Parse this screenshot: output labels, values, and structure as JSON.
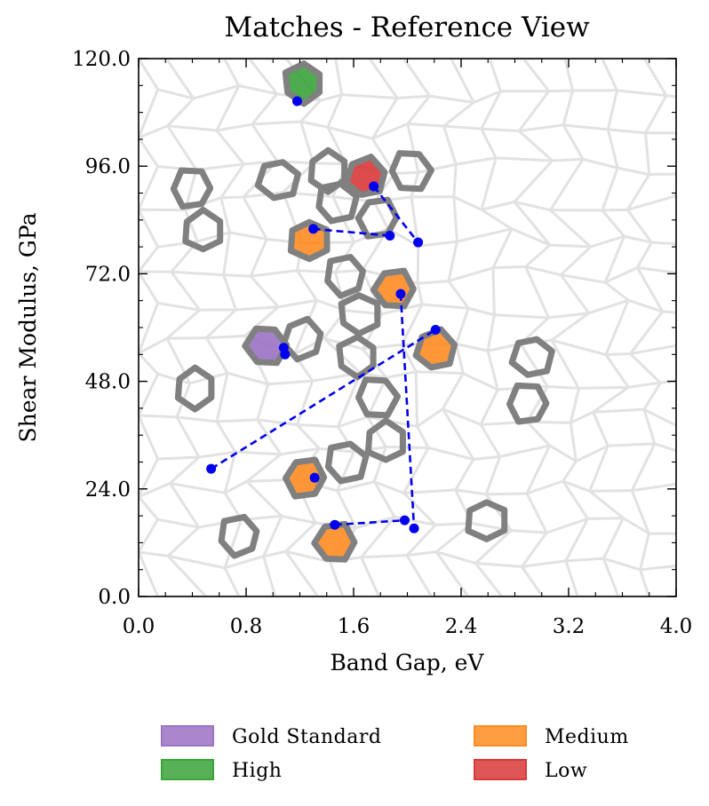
{
  "chart_data": {
    "type": "scatter",
    "title": "Matches - Reference View",
    "xlabel": "Band Gap, eV",
    "ylabel": "Shear Modulus, GPa",
    "xlim": [
      0.0,
      4.0
    ],
    "ylim": [
      0.0,
      120.0
    ],
    "x_ticks": [
      "0.0",
      "0.8",
      "1.6",
      "2.4",
      "3.2",
      "4.0"
    ],
    "y_ticks": [
      "0.0",
      "24.0",
      "48.0",
      "72.0",
      "96.0",
      "120.0"
    ],
    "x_tick_values": [
      0.0,
      0.8,
      1.6,
      2.4,
      3.2,
      4.0
    ],
    "y_tick_values": [
      0,
      24,
      48,
      72,
      96,
      120
    ],
    "grid": false,
    "background": "faint grey Voronoi cell mesh",
    "legend_position": "below plot, two columns",
    "legend": [
      {
        "label": "Gold Standard",
        "color": "#9b72c4"
      },
      {
        "label": "Medium",
        "color": "#ff8c22"
      },
      {
        "label": "High",
        "color": "#3aa33a"
      },
      {
        "label": "Low",
        "color": "#d93838"
      }
    ],
    "outline_color": "#808080",
    "marker_color": "#0000ee",
    "cells": [
      {
        "x": 1.23,
        "y": 114.5,
        "fill": "High"
      },
      {
        "x": 1.69,
        "y": 93.5,
        "fill": "Low"
      },
      {
        "x": 2.02,
        "y": 95.0,
        "fill": "none"
      },
      {
        "x": 1.41,
        "y": 95.0,
        "fill": "none"
      },
      {
        "x": 1.04,
        "y": 93.0,
        "fill": "none"
      },
      {
        "x": 0.4,
        "y": 91.0,
        "fill": "none"
      },
      {
        "x": 0.48,
        "y": 81.5,
        "fill": "none"
      },
      {
        "x": 1.47,
        "y": 88.0,
        "fill": "none"
      },
      {
        "x": 1.78,
        "y": 84.5,
        "fill": "none"
      },
      {
        "x": 1.27,
        "y": 79.5,
        "fill": "Medium"
      },
      {
        "x": 1.54,
        "y": 71.5,
        "fill": "none"
      },
      {
        "x": 1.9,
        "y": 68.5,
        "fill": "Medium"
      },
      {
        "x": 1.64,
        "y": 63.0,
        "fill": "none"
      },
      {
        "x": 1.22,
        "y": 57.5,
        "fill": "none"
      },
      {
        "x": 0.95,
        "y": 56.0,
        "fill": "Gold Standard"
      },
      {
        "x": 1.63,
        "y": 53.5,
        "fill": "none"
      },
      {
        "x": 2.21,
        "y": 55.0,
        "fill": "Medium"
      },
      {
        "x": 1.77,
        "y": 44.5,
        "fill": "none"
      },
      {
        "x": 0.42,
        "y": 46.5,
        "fill": "none"
      },
      {
        "x": 2.93,
        "y": 53.5,
        "fill": "none"
      },
      {
        "x": 2.9,
        "y": 43.0,
        "fill": "none"
      },
      {
        "x": 1.84,
        "y": 34.5,
        "fill": "none"
      },
      {
        "x": 1.54,
        "y": 30.0,
        "fill": "none"
      },
      {
        "x": 1.24,
        "y": 26.5,
        "fill": "Medium"
      },
      {
        "x": 2.59,
        "y": 17.0,
        "fill": "none"
      },
      {
        "x": 0.75,
        "y": 13.5,
        "fill": "none"
      },
      {
        "x": 1.46,
        "y": 12.0,
        "fill": "Medium"
      }
    ],
    "points": [
      {
        "x": 1.18,
        "y": 110.5
      },
      {
        "x": 1.75,
        "y": 91.5
      },
      {
        "x": 1.3,
        "y": 82.0
      },
      {
        "x": 1.87,
        "y": 80.5
      },
      {
        "x": 2.08,
        "y": 79.0
      },
      {
        "x": 1.95,
        "y": 67.5
      },
      {
        "x": 2.21,
        "y": 59.5
      },
      {
        "x": 1.08,
        "y": 55.5
      },
      {
        "x": 1.09,
        "y": 54.0
      },
      {
        "x": 0.54,
        "y": 28.5
      },
      {
        "x": 1.31,
        "y": 26.5
      },
      {
        "x": 1.46,
        "y": 16.0
      },
      {
        "x": 1.98,
        "y": 17.0
      },
      {
        "x": 2.05,
        "y": 15.2
      }
    ],
    "dashed_lines": [
      [
        [
          1.75,
          91.5
        ],
        [
          2.08,
          79.0
        ]
      ],
      [
        [
          1.3,
          82.0
        ],
        [
          1.87,
          80.5
        ]
      ],
      [
        [
          0.54,
          28.5
        ],
        [
          2.21,
          59.5
        ]
      ],
      [
        [
          1.95,
          67.5
        ],
        [
          2.05,
          15.2
        ]
      ],
      [
        [
          1.46,
          16.0
        ],
        [
          1.98,
          17.0
        ]
      ]
    ]
  }
}
